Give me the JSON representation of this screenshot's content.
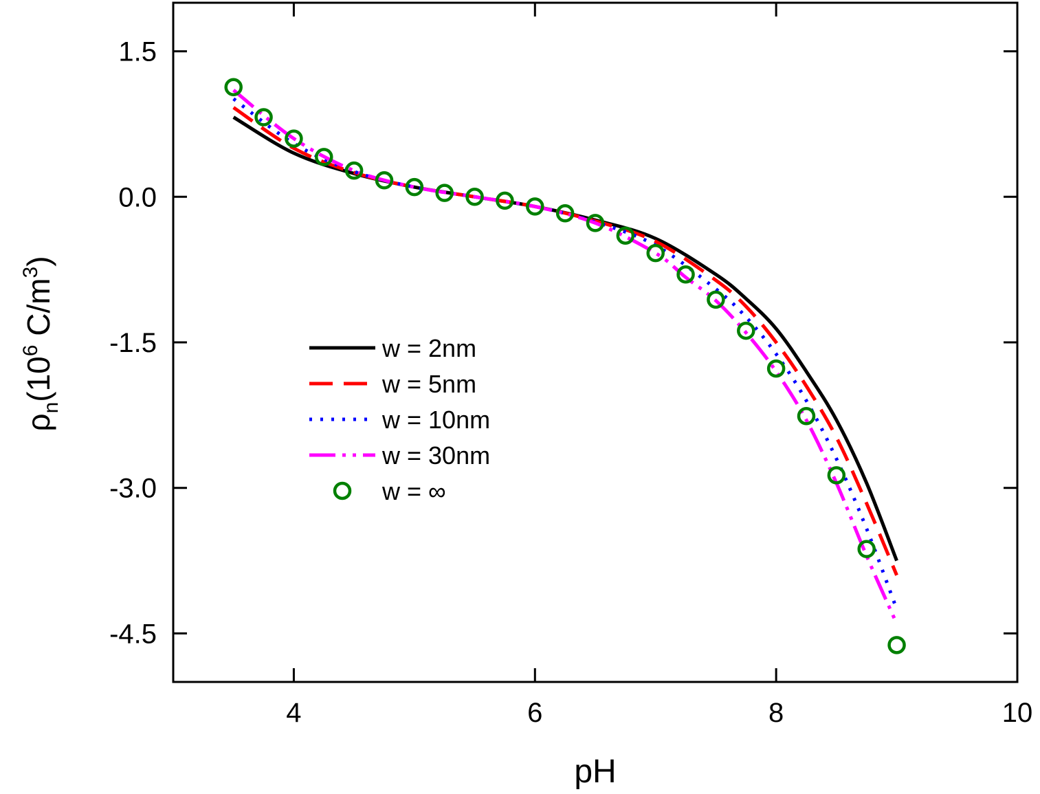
{
  "chart_data": {
    "type": "line",
    "title": "",
    "xlabel": "pH",
    "ylabel": {
      "base": "ρ",
      "subscript": "n",
      "open": "(10",
      "power": "6",
      "unit": " C/m",
      "unit_power": "3",
      "close": ")"
    },
    "xlim": [
      3,
      10
    ],
    "ylim": [
      -5.0,
      2.0
    ],
    "xticks": [
      4,
      6,
      8,
      10
    ],
    "xtick_labels": [
      "4",
      "6",
      "8",
      "10"
    ],
    "yticks": [
      1.5,
      0.0,
      -1.5,
      -3.0,
      -4.5
    ],
    "ytick_labels": [
      "1.5",
      "0.0",
      "-1.5",
      "-3.0",
      "-4.5"
    ],
    "grid": false,
    "legend_position": "center-left",
    "series": [
      {
        "name": "w = 2nm",
        "color": "#000000",
        "style": "solid",
        "x": [
          3.5,
          4.0,
          4.5,
          5.0,
          5.5,
          6.0,
          6.5,
          7.0,
          7.5,
          7.75,
          8.0,
          8.25,
          8.5,
          8.75,
          9.0
        ],
        "y": [
          0.82,
          0.45,
          0.24,
          0.1,
          0.0,
          -0.1,
          -0.24,
          -0.43,
          -0.8,
          -1.05,
          -1.36,
          -1.8,
          -2.3,
          -2.95,
          -3.75
        ]
      },
      {
        "name": "w = 5nm",
        "color": "#ff0000",
        "style": "dashed",
        "x": [
          3.5,
          4.0,
          4.5,
          5.0,
          5.5,
          6.0,
          6.5,
          7.0,
          7.5,
          7.75,
          8.0,
          8.25,
          8.5,
          8.75,
          9.0
        ],
        "y": [
          0.92,
          0.5,
          0.25,
          0.1,
          0.0,
          -0.1,
          -0.25,
          -0.46,
          -0.86,
          -1.13,
          -1.5,
          -1.95,
          -2.48,
          -3.16,
          -3.9
        ]
      },
      {
        "name": "w = 10nm",
        "color": "#0000ff",
        "style": "dotted",
        "x": [
          3.5,
          4.0,
          4.5,
          5.0,
          5.5,
          6.0,
          6.5,
          7.0,
          7.5,
          7.75,
          8.0,
          8.25,
          8.5,
          8.75,
          9.0
        ],
        "y": [
          1.01,
          0.55,
          0.26,
          0.1,
          0.0,
          -0.1,
          -0.26,
          -0.5,
          -0.95,
          -1.24,
          -1.62,
          -2.1,
          -2.7,
          -3.42,
          -4.25
        ]
      },
      {
        "name": "w = 30nm",
        "color": "#ff00ff",
        "style": "dashdotdot",
        "x": [
          3.5,
          4.0,
          4.5,
          5.0,
          5.5,
          6.0,
          6.5,
          7.0,
          7.25,
          7.5,
          7.75,
          8.0,
          8.25,
          8.5,
          8.75,
          9.0
        ],
        "y": [
          1.1,
          0.6,
          0.27,
          0.1,
          0.0,
          -0.1,
          -0.27,
          -0.58,
          -0.83,
          -1.07,
          -1.4,
          -1.8,
          -2.3,
          -2.95,
          -3.7,
          -4.4
        ]
      },
      {
        "name": "w = ∞",
        "color": "#008000",
        "style": "markers",
        "x": [
          3.5,
          3.75,
          4.0,
          4.25,
          4.5,
          4.75,
          5.0,
          5.25,
          5.5,
          5.75,
          6.0,
          6.25,
          6.5,
          6.75,
          7.0,
          7.25,
          7.5,
          7.75,
          8.0,
          8.25,
          8.5,
          8.75,
          9.0
        ],
        "y": [
          1.13,
          0.82,
          0.6,
          0.41,
          0.27,
          0.17,
          0.1,
          0.04,
          0.0,
          -0.04,
          -0.1,
          -0.17,
          -0.27,
          -0.4,
          -0.58,
          -0.8,
          -1.06,
          -1.38,
          -1.77,
          -2.26,
          -2.87,
          -3.63,
          -4.62
        ]
      }
    ]
  }
}
